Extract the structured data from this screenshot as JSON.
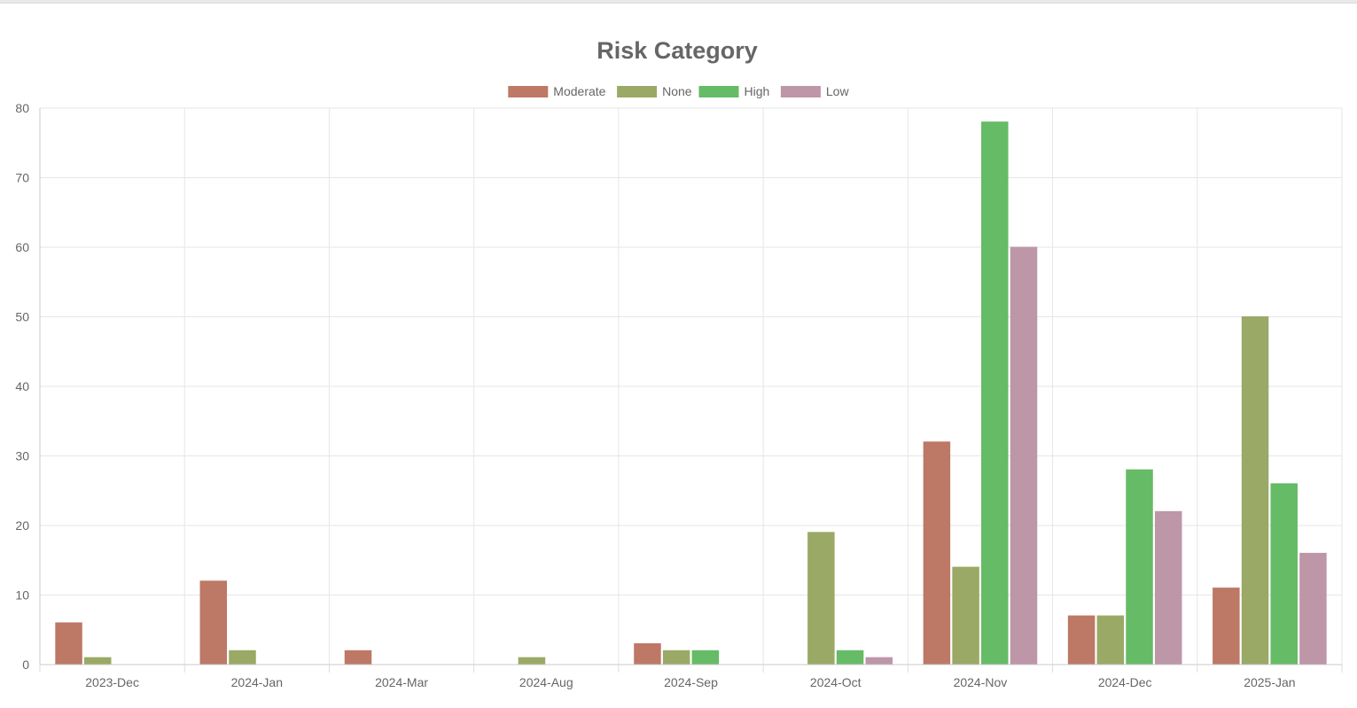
{
  "chart_data": {
    "type": "bar",
    "title": "Risk Category",
    "xlabel": "",
    "ylabel": "",
    "categories": [
      "2023-Dec",
      "2024-Jan",
      "2024-Mar",
      "2024-Aug",
      "2024-Sep",
      "2024-Oct",
      "2024-Nov",
      "2024-Dec",
      "2025-Jan"
    ],
    "ylim": [
      0,
      80
    ],
    "yticks": [
      0,
      10,
      20,
      30,
      40,
      50,
      60,
      70,
      80
    ],
    "grid": true,
    "legend_position": "top",
    "series": [
      {
        "name": "Moderate",
        "color": "#bd7866",
        "values": [
          6,
          12,
          2,
          0,
          3,
          0,
          32,
          7,
          11
        ]
      },
      {
        "name": "None",
        "color": "#9aa965",
        "values": [
          1,
          2,
          0,
          1,
          2,
          19,
          14,
          7,
          50
        ]
      },
      {
        "name": "High",
        "color": "#66bb66",
        "values": [
          0,
          0,
          0,
          0,
          2,
          2,
          78,
          28,
          26
        ]
      },
      {
        "name": "Low",
        "color": "#bd96a8",
        "values": [
          0,
          0,
          0,
          0,
          0,
          1,
          60,
          22,
          16
        ]
      }
    ]
  }
}
